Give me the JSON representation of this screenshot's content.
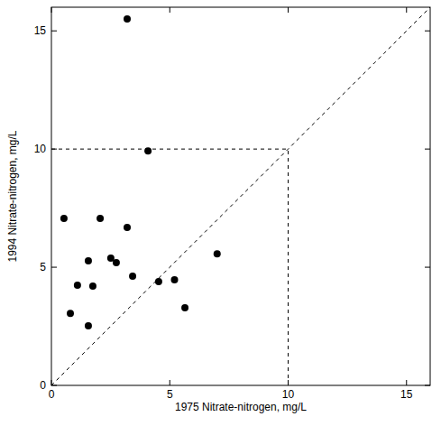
{
  "chart_data": {
    "type": "scatter",
    "x_label": "1975 Nitrate-nitrogen, mg/L",
    "y_label": "1994 Nitrate-nitrogen, mg/L",
    "x": [
      0.53,
      0.8,
      1.1,
      1.56,
      1.56,
      1.75,
      2.06,
      2.51,
      2.74,
      3.2,
      3.2,
      3.43,
      4.08,
      4.53,
      5.2,
      5.64,
      7.0
    ],
    "values": [
      7.06,
      3.05,
      4.24,
      5.27,
      2.52,
      4.2,
      7.06,
      5.38,
      5.19,
      6.68,
      15.5,
      4.62,
      9.92,
      4.39,
      4.47,
      3.28,
      5.57
    ],
    "color": "#000000",
    "marker": "circle",
    "threshold": 10,
    "xlim": [
      0,
      16
    ],
    "xticks": [
      0,
      5,
      10,
      15
    ],
    "ylim": [
      0,
      16
    ],
    "yticks": [
      0,
      5,
      10,
      15
    ],
    "grid": false
  }
}
